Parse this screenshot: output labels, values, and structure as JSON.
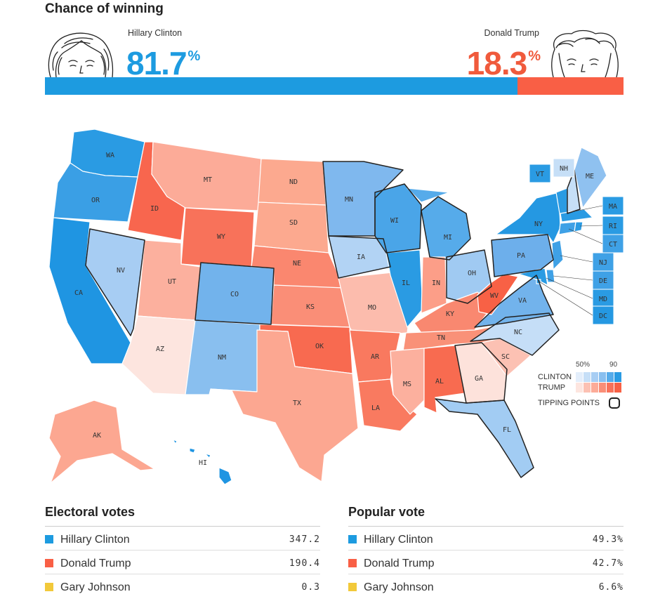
{
  "header": {
    "title": "Chance of winning"
  },
  "candidates": {
    "left": {
      "name": "Hillary Clinton",
      "pct_value": "81.7",
      "pct_sign": "%",
      "share": 0.817,
      "color": "#1d9be0"
    },
    "right": {
      "name": "Donald Trump",
      "pct_value": "18.3",
      "pct_sign": "%",
      "share": 0.183,
      "color": "#f95f45"
    }
  },
  "map": {
    "states": [
      {
        "abbr": "WA",
        "color": "#2a9be3"
      },
      {
        "abbr": "OR",
        "color": "#3a9fe5"
      },
      {
        "abbr": "CA",
        "color": "#1f95e2"
      },
      {
        "abbr": "NV",
        "color": "#a7cdf3"
      },
      {
        "abbr": "ID",
        "color": "#f8664e"
      },
      {
        "abbr": "MT",
        "color": "#fcab98"
      },
      {
        "abbr": "WY",
        "color": "#f8725a"
      },
      {
        "abbr": "UT",
        "color": "#fcb09e"
      },
      {
        "abbr": "AZ",
        "color": "#fde5df"
      },
      {
        "abbr": "CO",
        "color": "#72b3ec"
      },
      {
        "abbr": "NM",
        "color": "#89bfef"
      },
      {
        "abbr": "ND",
        "color": "#fca98f"
      },
      {
        "abbr": "SD",
        "color": "#fca98f"
      },
      {
        "abbr": "NE",
        "color": "#fa876f"
      },
      {
        "abbr": "KS",
        "color": "#fa8e77"
      },
      {
        "abbr": "OK",
        "color": "#f86a50"
      },
      {
        "abbr": "TX",
        "color": "#fca791"
      },
      {
        "abbr": "MN",
        "color": "#7fb8ee"
      },
      {
        "abbr": "IA",
        "color": "#b2d3f4"
      },
      {
        "abbr": "MO",
        "color": "#fcbcad"
      },
      {
        "abbr": "AR",
        "color": "#f9795f"
      },
      {
        "abbr": "LA",
        "color": "#f97a60"
      },
      {
        "abbr": "WI",
        "color": "#4aa5e8"
      },
      {
        "abbr": "IL",
        "color": "#2a9be3"
      },
      {
        "abbr": "MI",
        "color": "#56abea"
      },
      {
        "abbr": "IN",
        "color": "#fc9e88"
      },
      {
        "abbr": "OH",
        "color": "#a0caf2"
      },
      {
        "abbr": "KY",
        "color": "#f98870"
      },
      {
        "abbr": "TN",
        "color": "#f99178"
      },
      {
        "abbr": "MS",
        "color": "#fcb09e"
      },
      {
        "abbr": "AL",
        "color": "#f86b50"
      },
      {
        "abbr": "GA",
        "color": "#fde2db"
      },
      {
        "abbr": "FL",
        "color": "#a2ccf3"
      },
      {
        "abbr": "SC",
        "color": "#fcc1b3"
      },
      {
        "abbr": "NC",
        "color": "#c5def7"
      },
      {
        "abbr": "VA",
        "color": "#72b3ec"
      },
      {
        "abbr": "WV",
        "color": "#f86145"
      },
      {
        "abbr": "PA",
        "color": "#6dafeb"
      },
      {
        "abbr": "NY",
        "color": "#2598e2"
      },
      {
        "abbr": "ME",
        "color": "#8fc1f0"
      },
      {
        "abbr": "AK",
        "color": "#fca791"
      },
      {
        "abbr": "HI",
        "color": "#1f95e2"
      },
      {
        "abbr": "VT",
        "color": "#2a9be3"
      },
      {
        "abbr": "NH",
        "color": "#c6dff7"
      },
      {
        "abbr": "MA",
        "color": "#2a9be3"
      },
      {
        "abbr": "RI",
        "color": "#2a9be3"
      },
      {
        "abbr": "CT",
        "color": "#3fa1e6"
      },
      {
        "abbr": "NJ",
        "color": "#3fa1e6"
      },
      {
        "abbr": "DE",
        "color": "#3fa1e6"
      },
      {
        "abbr": "MD",
        "color": "#2a9be3"
      },
      {
        "abbr": "DC",
        "color": "#2598e2"
      }
    ]
  },
  "legend": {
    "pct_low": "50%",
    "pct_high": "90",
    "clinton_label": "CLINTON",
    "trump_label": "TRUMP",
    "tipping_label": "TIPPING POINTS",
    "clinton_colors": [
      "#e3eefb",
      "#c6dff7",
      "#a7cdf3",
      "#89bfef",
      "#56abea",
      "#2a9be3"
    ],
    "trump_colors": [
      "#fde5df",
      "#fcc1b3",
      "#fcab98",
      "#fa8e77",
      "#f8725a",
      "#f86145"
    ]
  },
  "electoral": {
    "title": "Electoral votes",
    "rows": [
      {
        "name": "Hillary Clinton",
        "value": "347.2",
        "color": "#1d9be0"
      },
      {
        "name": "Donald Trump",
        "value": "190.4",
        "color": "#f95f45"
      },
      {
        "name": "Gary Johnson",
        "value": "0.3",
        "color": "#f2c93a"
      }
    ]
  },
  "popular": {
    "title": "Popular vote",
    "rows": [
      {
        "name": "Hillary Clinton",
        "value": "49.3%",
        "color": "#1d9be0"
      },
      {
        "name": "Donald Trump",
        "value": "42.7%",
        "color": "#f95f45"
      },
      {
        "name": "Gary Johnson",
        "value": "6.6%",
        "color": "#f2c93a"
      }
    ]
  }
}
